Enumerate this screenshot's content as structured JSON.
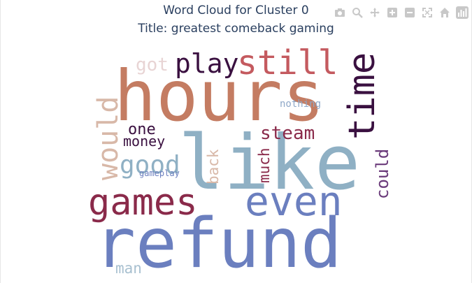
{
  "chart_data": {
    "type": "wordcloud",
    "title": "Word Cloud for Cluster 0",
    "subtitle": "Title: greatest comeback gaming",
    "words": [
      {
        "text": "refund",
        "color": "#6b7fbf"
      },
      {
        "text": "hours",
        "color": "#c47c62"
      },
      {
        "text": "like",
        "color": "#8fb0c4"
      },
      {
        "text": "even",
        "color": "#6b7fbf"
      },
      {
        "text": "games",
        "color": "#8a2a4a"
      },
      {
        "text": "still",
        "color": "#c45a5f"
      },
      {
        "text": "time",
        "color": "#3a1040"
      },
      {
        "text": "would",
        "color": "#d8b8a8"
      },
      {
        "text": "play",
        "color": "#3a1040"
      },
      {
        "text": "good",
        "color": "#8fb0c4"
      },
      {
        "text": "steam",
        "color": "#8a2a4a"
      },
      {
        "text": "could",
        "color": "#6a3a7a"
      },
      {
        "text": "much",
        "color": "#8a2a4a"
      },
      {
        "text": "back",
        "color": "#d8b8a8"
      },
      {
        "text": "one",
        "color": "#3a1040"
      },
      {
        "text": "money",
        "color": "#3a1040"
      },
      {
        "text": "got",
        "color": "#e8d4d4"
      },
      {
        "text": "man",
        "color": "#a8c0d0"
      },
      {
        "text": "nothing",
        "color": "#8fa8c8"
      },
      {
        "text": "gameplay",
        "color": "#6b7fbf"
      }
    ]
  },
  "modebar": {
    "icons": [
      "camera-icon",
      "zoom-icon",
      "pan-icon",
      "zoom-in-icon",
      "zoom-out-icon",
      "autoscale-icon",
      "reset-axes-icon",
      "plotly-logo-icon"
    ]
  }
}
